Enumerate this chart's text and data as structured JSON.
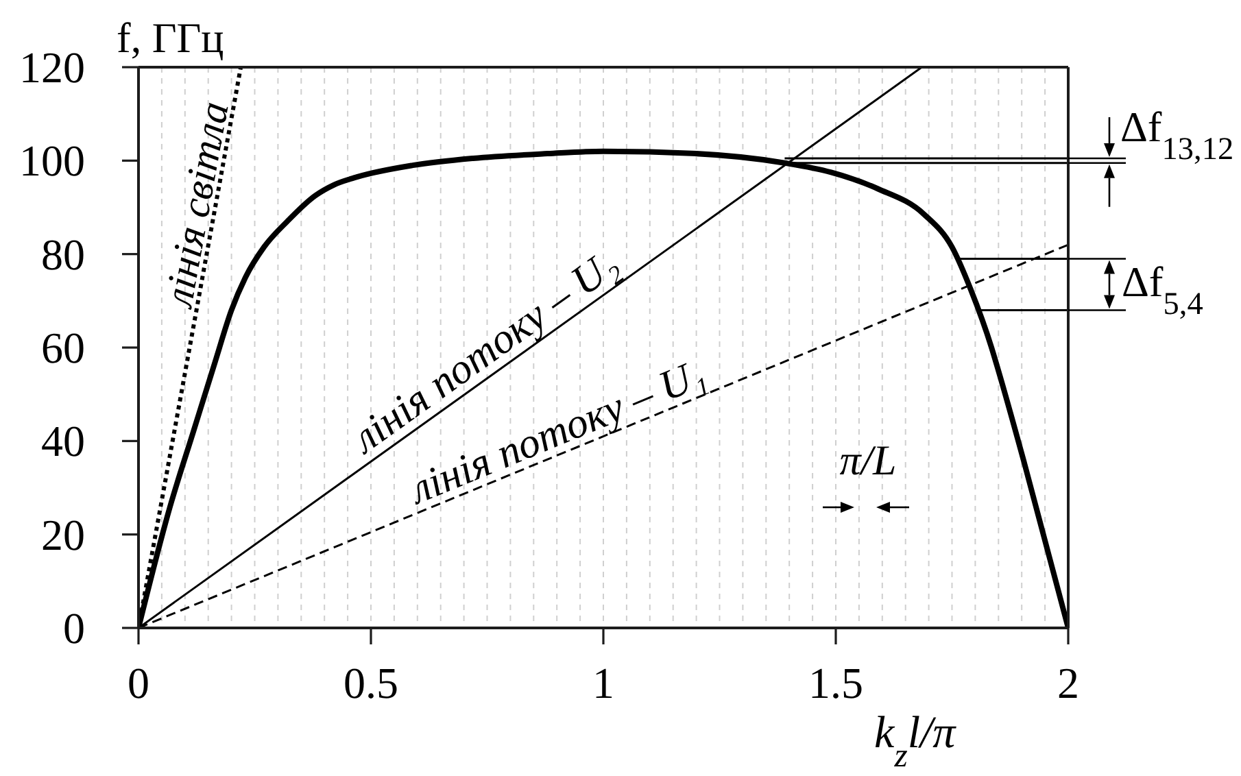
{
  "chart_data": {
    "type": "line",
    "xlabel": "k$_{z}$l/π",
    "ylabel": "f, ГГц",
    "annotations": [
      "Δf$_{13,12}$",
      "Δf$_{5,4}$",
      "π/L"
    ],
    "xlim": [
      0,
      2
    ],
    "ylim": [
      0,
      120
    ],
    "xticks": [
      0,
      {
        "value": 0.05,
        "label": null
      },
      {
        "value": 0.1,
        "label": null
      },
      {
        "value": 0.15,
        "label": null
      },
      {
        "value": 0.2,
        "label": null
      },
      {
        "value": 0.25,
        "label": null
      },
      {
        "value": 0.3,
        "label": null
      },
      {
        "value": 0.35,
        "label": null
      },
      {
        "value": 0.4,
        "label": null
      },
      {
        "value": 0.45,
        "label": null
      },
      0.5,
      {
        "value": 0.55,
        "label": null
      },
      {
        "value": 0.6,
        "label": null
      },
      {
        "value": 0.65,
        "label": null
      },
      {
        "value": 0.7,
        "label": null
      },
      {
        "value": 0.75,
        "label": null
      },
      {
        "value": 0.8,
        "label": null
      },
      {
        "value": 0.85,
        "label": null
      },
      {
        "value": 0.9,
        "label": null
      },
      {
        "value": 0.95,
        "label": null
      },
      1,
      {
        "value": 1.05,
        "label": null
      },
      {
        "value": 1.1,
        "label": null
      },
      {
        "value": 1.15,
        "label": null
      },
      {
        "value": 1.2,
        "label": null
      },
      {
        "value": 1.25,
        "label": null
      },
      {
        "value": 1.3,
        "label": null
      },
      {
        "value": 1.35,
        "label": null
      },
      {
        "value": 1.4,
        "label": null
      },
      {
        "value": 1.45,
        "label": null
      },
      1.5,
      {
        "value": 1.55,
        "label": null
      },
      {
        "value": 1.6,
        "label": null
      },
      {
        "value": 1.65,
        "label": null
      },
      {
        "value": 1.7,
        "label": null
      },
      {
        "value": 1.75,
        "label": null
      },
      {
        "value": 1.8,
        "label": null
      },
      {
        "value": 1.85,
        "label": null
      },
      {
        "value": 1.9,
        "label": null
      },
      {
        "value": 1.95,
        "label": null
      },
      2
    ],
    "yticks": [
      0,
      20,
      40,
      60,
      80,
      100,
      120
    ],
    "grid": "x",
    "marker": "none",
    "series": [
      {
        "color": "#000000",
        "line_style": "solid",
        "x": [
          0,
          0.068,
          0.118,
          0.165,
          0.2,
          0.23,
          0.27,
          0.32,
          0.38,
          0.42,
          0.47,
          0.59,
          0.72,
          0.88,
          1.0,
          1.2,
          1.39,
          1.49,
          1.59,
          1.69,
          1.75,
          1.79,
          1.835,
          1.85,
          1.905,
          2
        ],
        "values": [
          0,
          26,
          42,
          57,
          68,
          75,
          81.5,
          87,
          92.5,
          94.8,
          96.5,
          99,
          100.5,
          101.5,
          102,
          101.5,
          99.5,
          97.5,
          94,
          88.5,
          81.5,
          72.5,
          60,
          55,
          35.5,
          0
        ]
      },
      {
        "name": "лінія світла",
        "color": "#000000",
        "line_style": "dotted",
        "x": [
          0,
          0.22
        ],
        "values": [
          0,
          120
        ]
      },
      {
        "name": "лінія потоку – U₂",
        "color": "#000000",
        "line_style": "solid",
        "x": [
          0,
          1.685
        ],
        "values": [
          0,
          120
        ]
      },
      {
        "name": "лінія потоку – U₁",
        "color": "#000000",
        "line_style": "dashed",
        "x": [
          0,
          2
        ],
        "values": [
          0,
          82
        ]
      },
      {
        "color": "#000000",
        "line_style": "solid",
        "x": [
          1.39,
          2
        ],
        "values": [
          100.5,
          100.5
        ]
      },
      {
        "color": "#000000",
        "line_style": "solid",
        "x": [
          1.39,
          2
        ],
        "values": [
          99.5,
          99.5
        ]
      },
      {
        "color": "#000000",
        "line_style": "solid",
        "x": [
          1.76,
          2
        ],
        "values": [
          79,
          79
        ]
      },
      {
        "color": "#000000",
        "line_style": "solid",
        "x": [
          1.81,
          2
        ],
        "values": [
          68,
          68
        ]
      }
    ]
  }
}
